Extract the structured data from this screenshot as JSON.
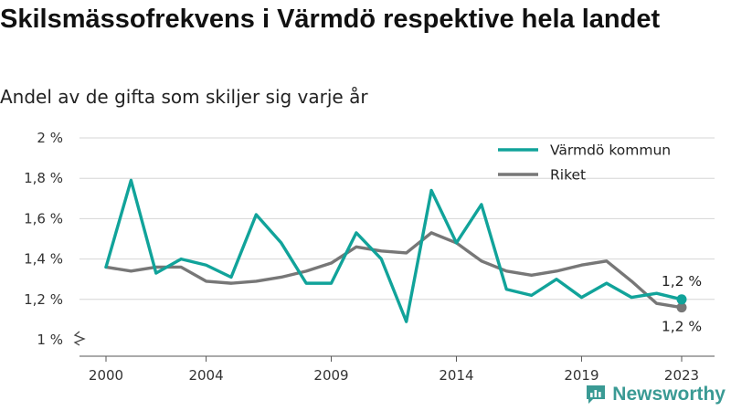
{
  "title": "Skilsmässofrekvens i Värmdö respektive hela landet",
  "subtitle": "Andel av de gifta som skiljer sig varje år",
  "brand": "Newsworthy",
  "chart_data": {
    "type": "line",
    "title": "Skilsmässofrekvens i Värmdö respektive hela landet",
    "subtitle": "Andel av de gifta som skiljer sig varje år",
    "x": [
      2000,
      2001,
      2002,
      2003,
      2004,
      2005,
      2006,
      2007,
      2008,
      2009,
      2010,
      2011,
      2012,
      2013,
      2014,
      2015,
      2016,
      2017,
      2018,
      2019,
      2020,
      2021,
      2022,
      2023
    ],
    "x_ticks": [
      2000,
      2004,
      2009,
      2014,
      2019,
      2023
    ],
    "x_tick_labels": [
      "2000",
      "2004",
      "2009",
      "2014",
      "2019",
      "2023"
    ],
    "y_ticks": [
      1.0,
      1.2,
      1.4,
      1.6,
      1.8,
      2.0
    ],
    "y_tick_labels": [
      "1 %",
      "1,2 %",
      "1,4 %",
      "1,6 %",
      "1,8 %",
      "2 %"
    ],
    "ylim": [
      1.0,
      2.0
    ],
    "xlim": [
      2000,
      2023
    ],
    "xlabel": "",
    "ylabel": "",
    "grid": true,
    "legend": "top-right",
    "series": [
      {
        "name": "Värmdö kommun",
        "color": "#11a39a",
        "values": [
          1.36,
          1.79,
          1.33,
          1.4,
          1.37,
          1.31,
          1.62,
          1.48,
          1.28,
          1.28,
          1.53,
          1.4,
          1.09,
          1.74,
          1.48,
          1.67,
          1.25,
          1.22,
          1.3,
          1.21,
          1.28,
          1.21,
          1.23,
          1.2
        ],
        "end_label": "1,2 %"
      },
      {
        "name": "Riket",
        "color": "#777777",
        "values": [
          1.36,
          1.34,
          1.36,
          1.36,
          1.29,
          1.28,
          1.29,
          1.31,
          1.34,
          1.38,
          1.46,
          1.44,
          1.43,
          1.53,
          1.48,
          1.39,
          1.34,
          1.32,
          1.34,
          1.37,
          1.39,
          1.29,
          1.18,
          1.16
        ],
        "end_label": "1,2 %"
      }
    ]
  }
}
